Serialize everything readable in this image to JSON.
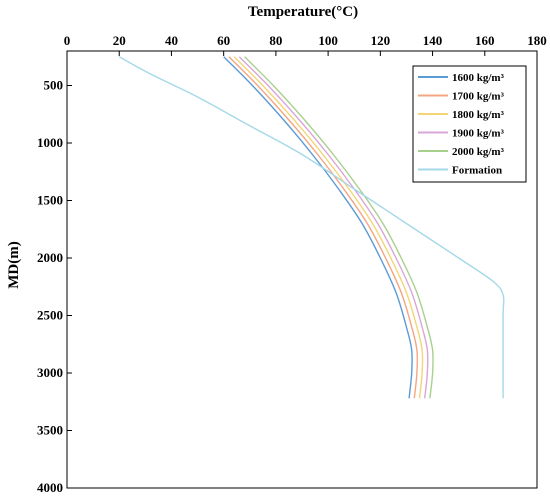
{
  "chart_data": {
    "type": "line",
    "title": "",
    "xlabel": "Temperature(°C)",
    "ylabel": "MD(m)",
    "x_axis_position": "top",
    "y_axis_inverted": true,
    "xlim": [
      0,
      180
    ],
    "ylim": [
      200,
      4000
    ],
    "xticks": [
      0,
      20,
      40,
      60,
      80,
      100,
      120,
      140,
      160,
      180
    ],
    "yticks": [
      500,
      1000,
      1500,
      2000,
      2500,
      3000,
      3500,
      4000
    ],
    "grid": false,
    "legend_position": "top-right",
    "series": [
      {
        "name": "1600 kg/m³",
        "color": "#5b9bd5",
        "points": [
          [
            60,
            250
          ],
          [
            71,
            500
          ],
          [
            83,
            800
          ],
          [
            94,
            1100
          ],
          [
            104,
            1400
          ],
          [
            113,
            1700
          ],
          [
            120,
            2000
          ],
          [
            126,
            2300
          ],
          [
            130,
            2600
          ],
          [
            132,
            2800
          ],
          [
            132,
            3000
          ],
          [
            131,
            3220
          ]
        ]
      },
      {
        "name": "1700 kg/m³",
        "color": "#f4a582",
        "points": [
          [
            62,
            250
          ],
          [
            73,
            500
          ],
          [
            85,
            800
          ],
          [
            96,
            1100
          ],
          [
            106,
            1400
          ],
          [
            115,
            1700
          ],
          [
            122,
            2000
          ],
          [
            128,
            2300
          ],
          [
            132,
            2600
          ],
          [
            134,
            2800
          ],
          [
            134,
            3000
          ],
          [
            133,
            3220
          ]
        ]
      },
      {
        "name": "1800 kg/m³",
        "color": "#f2d675",
        "points": [
          [
            64,
            250
          ],
          [
            75,
            500
          ],
          [
            87,
            800
          ],
          [
            98,
            1100
          ],
          [
            108,
            1400
          ],
          [
            117,
            1700
          ],
          [
            124,
            2000
          ],
          [
            130,
            2300
          ],
          [
            134,
            2600
          ],
          [
            136,
            2800
          ],
          [
            136,
            3000
          ],
          [
            135,
            3220
          ]
        ]
      },
      {
        "name": "1900 kg/m³",
        "color": "#d9a6d9",
        "points": [
          [
            66,
            250
          ],
          [
            77,
            500
          ],
          [
            89,
            800
          ],
          [
            100,
            1100
          ],
          [
            110,
            1400
          ],
          [
            119,
            1700
          ],
          [
            126,
            2000
          ],
          [
            132,
            2300
          ],
          [
            136,
            2600
          ],
          [
            138,
            2800
          ],
          [
            138,
            3000
          ],
          [
            137,
            3220
          ]
        ]
      },
      {
        "name": "2000 kg/m³",
        "color": "#a8d08d",
        "points": [
          [
            68,
            250
          ],
          [
            79,
            500
          ],
          [
            91,
            800
          ],
          [
            102,
            1100
          ],
          [
            112,
            1400
          ],
          [
            121,
            1700
          ],
          [
            128,
            2000
          ],
          [
            134,
            2300
          ],
          [
            138,
            2600
          ],
          [
            140,
            2800
          ],
          [
            140,
            3000
          ],
          [
            139,
            3220
          ]
        ]
      },
      {
        "name": "Formation",
        "color": "#a5d8e8",
        "points": [
          [
            20,
            250
          ],
          [
            32,
            400
          ],
          [
            50,
            600
          ],
          [
            70,
            850
          ],
          [
            90,
            1100
          ],
          [
            110,
            1400
          ],
          [
            130,
            1700
          ],
          [
            150,
            2000
          ],
          [
            163,
            2200
          ],
          [
            167,
            2320
          ],
          [
            167,
            2500
          ],
          [
            167,
            3000
          ],
          [
            167,
            3220
          ]
        ]
      }
    ]
  }
}
